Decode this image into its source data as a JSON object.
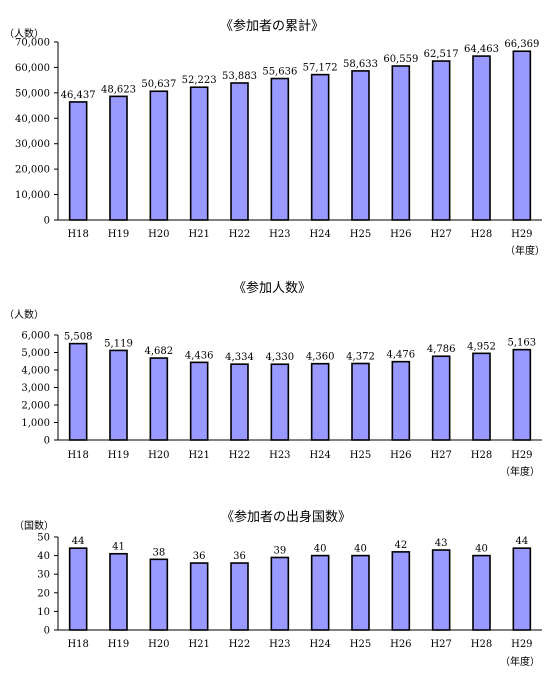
{
  "charts": [
    {
      "title": "《参加者の累計》",
      "y_unit": "（人数）",
      "x_unit": "（年度）",
      "y_ticks": [
        "0",
        "10,000",
        "20,000",
        "30,000",
        "40,000",
        "50,000",
        "60,000",
        "70,000"
      ]
    },
    {
      "title": "《参加人数》",
      "y_unit": "（人数）",
      "x_unit": "（年度）",
      "y_ticks": [
        "0",
        "1,000",
        "2,000",
        "3,000",
        "4,000",
        "5,000",
        "6,000"
      ]
    },
    {
      "title": "《参加者の出身国数》",
      "y_unit": "（国数）",
      "x_unit": "（年度）",
      "y_ticks": [
        "0",
        "10",
        "20",
        "30",
        "40",
        "50"
      ]
    }
  ],
  "chart_data": [
    {
      "type": "bar",
      "title": "《参加者の累計》",
      "ylabel": "（人数）",
      "xlabel": "（年度）",
      "categories": [
        "H18",
        "H19",
        "H20",
        "H21",
        "H22",
        "H23",
        "H24",
        "H25",
        "H26",
        "H27",
        "H28",
        "H29"
      ],
      "values": [
        46437,
        48623,
        50637,
        52223,
        53883,
        55636,
        57172,
        58633,
        60559,
        62517,
        64463,
        66369
      ],
      "value_labels": [
        "46,437",
        "48,623",
        "50,637",
        "52,223",
        "53,883",
        "55,636",
        "57,172",
        "58,633",
        "60,559",
        "62,517",
        "64,463",
        "66,369"
      ],
      "ylim": [
        0,
        70000
      ],
      "grid": false,
      "bar_color": "#9999ff"
    },
    {
      "type": "bar",
      "title": "《参加人数》",
      "ylabel": "（人数）",
      "xlabel": "（年度）",
      "categories": [
        "H18",
        "H19",
        "H20",
        "H21",
        "H22",
        "H23",
        "H24",
        "H25",
        "H26",
        "H27",
        "H28",
        "H29"
      ],
      "values": [
        5508,
        5119,
        4682,
        4436,
        4334,
        4330,
        4360,
        4372,
        4476,
        4786,
        4952,
        5163
      ],
      "value_labels": [
        "5,508",
        "5,119",
        "4,682",
        "4,436",
        "4,334",
        "4,330",
        "4,360",
        "4,372",
        "4,476",
        "4,786",
        "4,952",
        "5,163"
      ],
      "ylim": [
        0,
        6000
      ],
      "grid": false,
      "bar_color": "#9999ff"
    },
    {
      "type": "bar",
      "title": "《参加者の出身国数》",
      "ylabel": "（国数）",
      "xlabel": "（年度）",
      "categories": [
        "H18",
        "H19",
        "H20",
        "H21",
        "H22",
        "H23",
        "H24",
        "H25",
        "H26",
        "H27",
        "H28",
        "H29"
      ],
      "values": [
        44,
        41,
        38,
        36,
        36,
        39,
        40,
        40,
        42,
        43,
        40,
        44
      ],
      "value_labels": [
        "44",
        "41",
        "38",
        "36",
        "36",
        "39",
        "40",
        "40",
        "42",
        "43",
        "40",
        "44"
      ],
      "ylim": [
        0,
        50
      ],
      "grid": false,
      "bar_color": "#9999ff"
    }
  ]
}
